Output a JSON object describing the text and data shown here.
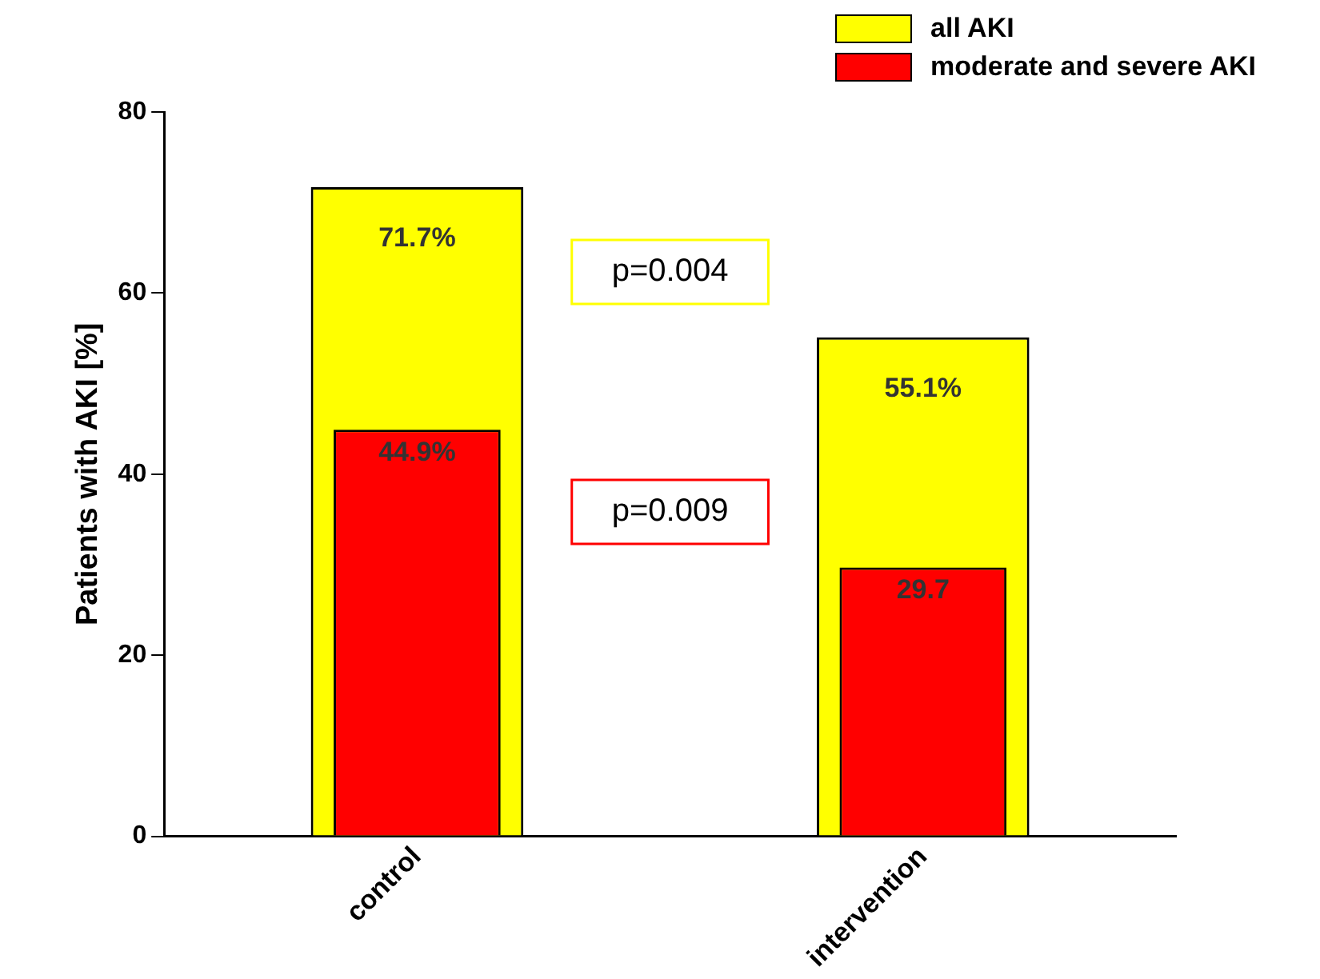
{
  "chart_data": {
    "type": "bar",
    "ylabel": "Patients with AKI [%]",
    "categories": [
      "control",
      "intervention"
    ],
    "series": [
      {
        "name": "all AKI",
        "color": "#ffff00",
        "values": [
          71.7,
          55.1
        ],
        "value_labels": [
          "71.7%",
          "55.1%"
        ]
      },
      {
        "name": "moderate and severe AKI",
        "color": "#ff0000",
        "values": [
          44.9,
          29.7
        ],
        "value_labels": [
          "44.9%",
          "29.7"
        ]
      }
    ],
    "annotations": [
      "p=0.004",
      "p=0.009"
    ],
    "ylim": [
      0,
      80
    ],
    "yticks": [
      0,
      20,
      40,
      60,
      80
    ],
    "grid": false,
    "legend": "top right"
  }
}
